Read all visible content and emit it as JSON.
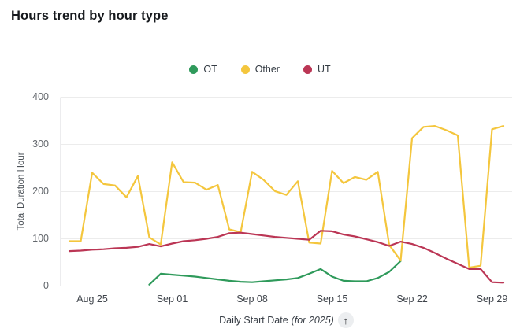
{
  "chart_data": {
    "type": "line",
    "title": "Hours trend by hour type",
    "xlabel": "Daily Start Date",
    "xlabel_note": "(for 2025)",
    "ylabel": "Total Duration Hour",
    "ylim": [
      0,
      400
    ],
    "y_ticks": [
      0,
      100,
      200,
      300,
      400
    ],
    "grid": true,
    "legend_position": "top-center",
    "x": [
      "Aug 23",
      "Aug 24",
      "Aug 25",
      "Aug 26",
      "Aug 27",
      "Aug 28",
      "Aug 29",
      "Aug 30",
      "Aug 31",
      "Sep 01",
      "Sep 02",
      "Sep 03",
      "Sep 04",
      "Sep 05",
      "Sep 06",
      "Sep 07",
      "Sep 08",
      "Sep 09",
      "Sep 10",
      "Sep 11",
      "Sep 12",
      "Sep 13",
      "Sep 14",
      "Sep 15",
      "Sep 16",
      "Sep 17",
      "Sep 18",
      "Sep 19",
      "Sep 20",
      "Sep 21",
      "Sep 22",
      "Sep 23",
      "Sep 24",
      "Sep 25",
      "Sep 26",
      "Sep 27",
      "Sep 28",
      "Sep 29",
      "Sep 30"
    ],
    "x_tick_labels": [
      {
        "label": "Aug 25",
        "index": 2
      },
      {
        "label": "Sep 01",
        "index": 9
      },
      {
        "label": "Sep 08",
        "index": 16
      },
      {
        "label": "Sep 15",
        "index": 23
      },
      {
        "label": "Sep 22",
        "index": 30
      },
      {
        "label": "Sep 29",
        "index": 37
      }
    ],
    "series": [
      {
        "name": "OT",
        "color": "#2f9a5b",
        "values": [
          null,
          null,
          null,
          null,
          null,
          null,
          null,
          3,
          26,
          24,
          22,
          20,
          17,
          14,
          11,
          9,
          8,
          10,
          12,
          14,
          17,
          26,
          36,
          20,
          11,
          10,
          10,
          17,
          30,
          53,
          null,
          null,
          null,
          null,
          null,
          null,
          null,
          null,
          null
        ]
      },
      {
        "name": "Other",
        "color": "#f4c63d",
        "values": [
          95,
          95,
          240,
          216,
          213,
          188,
          233,
          103,
          88,
          262,
          220,
          219,
          204,
          214,
          120,
          114,
          242,
          225,
          201,
          193,
          222,
          92,
          90,
          244,
          218,
          231,
          225,
          242,
          87,
          54,
          313,
          337,
          339,
          330,
          319,
          39,
          43,
          332,
          339
        ]
      },
      {
        "name": "UT",
        "color": "#bb3655",
        "values": [
          74,
          75,
          77,
          78,
          80,
          81,
          83,
          89,
          84,
          90,
          95,
          97,
          100,
          104,
          112,
          113,
          110,
          107,
          104,
          102,
          100,
          98,
          117,
          116,
          109,
          105,
          99,
          93,
          85,
          94,
          89,
          81,
          70,
          58,
          47,
          36,
          36,
          8,
          7
        ]
      }
    ]
  },
  "icons": {
    "sort_arrow": "↑"
  }
}
